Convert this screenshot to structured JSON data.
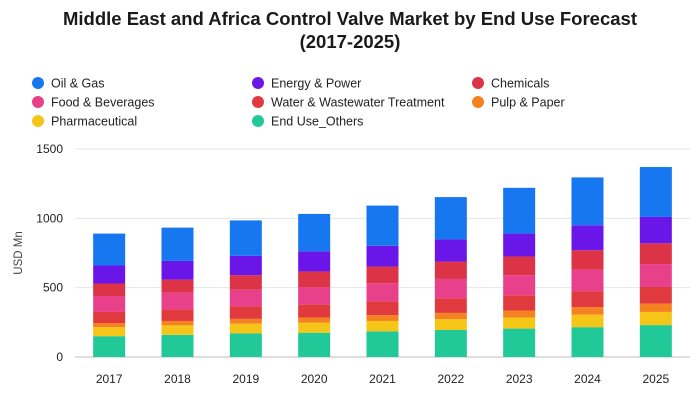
{
  "chart_data": {
    "type": "bar",
    "stacked": true,
    "title": "Middle East and Africa Control Valve Market by End Use Forecast",
    "subtitle": "(2017-2025)",
    "ylabel": "USD Mn",
    "xlabel": "",
    "ylim": [
      0,
      1500
    ],
    "yticks": [
      0,
      500,
      1000,
      1500
    ],
    "grid": true,
    "legend_position": "top",
    "categories": [
      "2017",
      "2018",
      "2019",
      "2020",
      "2021",
      "2022",
      "2023",
      "2024",
      "2025"
    ],
    "series": [
      {
        "name": "End Use_Others",
        "color": "#20c997",
        "values": [
          150,
          160,
          170,
          175,
          185,
          195,
          205,
          215,
          230
        ]
      },
      {
        "name": "Pharmaceutical",
        "color": "#f5c518",
        "values": [
          65,
          68,
          70,
          72,
          75,
          78,
          80,
          90,
          95
        ]
      },
      {
        "name": "Pulp & Paper",
        "color": "#f58220",
        "values": [
          30,
          32,
          35,
          38,
          42,
          45,
          50,
          55,
          60
        ]
      },
      {
        "name": "Water & Wastewater Treatment",
        "color": "#e03a3e",
        "values": [
          80,
          85,
          90,
          95,
          100,
          105,
          110,
          115,
          120
        ]
      },
      {
        "name": "Food & Beverages",
        "color": "#e8408a",
        "values": [
          115,
          118,
          120,
          122,
          130,
          140,
          145,
          155,
          165
        ]
      },
      {
        "name": "Chemicals",
        "color": "#dd3346",
        "values": [
          90,
          95,
          105,
          115,
          120,
          125,
          135,
          140,
          150
        ]
      },
      {
        "name": "Energy & Power",
        "color": "#6a16e8",
        "values": [
          130,
          135,
          140,
          145,
          150,
          160,
          165,
          180,
          190
        ]
      },
      {
        "name": "Oil & Gas",
        "color": "#1677f0",
        "values": [
          230,
          240,
          255,
          270,
          290,
          305,
          330,
          345,
          360
        ]
      }
    ],
    "legend_order": [
      "Oil & Gas",
      "Energy & Power",
      "Chemicals",
      "Food & Beverages",
      "Water & Wastewater Treatment",
      "Pulp & Paper",
      "Pharmaceutical",
      "End Use_Others"
    ]
  }
}
